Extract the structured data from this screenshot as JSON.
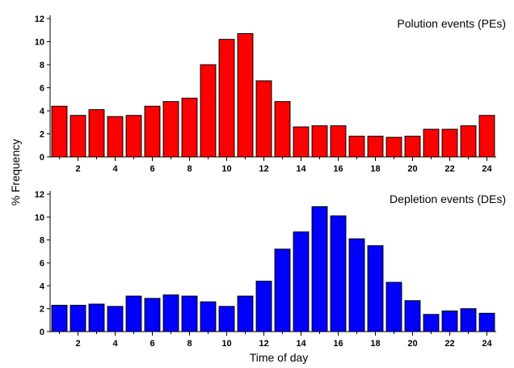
{
  "chart_data": [
    {
      "type": "bar",
      "title": "Polution events (PEs)",
      "x": [
        1,
        2,
        3,
        4,
        5,
        6,
        7,
        8,
        9,
        10,
        11,
        12,
        13,
        14,
        15,
        16,
        17,
        18,
        19,
        20,
        21,
        22,
        23,
        24
      ],
      "x_tick_labels": [
        "2",
        "4",
        "6",
        "8",
        "10",
        "12",
        "14",
        "16",
        "18",
        "20",
        "22",
        "24"
      ],
      "values": [
        4.4,
        3.6,
        4.1,
        3.5,
        3.6,
        4.4,
        4.8,
        5.1,
        8.0,
        10.2,
        10.7,
        6.6,
        4.8,
        2.6,
        2.7,
        2.7,
        1.8,
        1.8,
        1.7,
        1.8,
        2.4,
        2.4,
        2.7,
        3.6
      ],
      "ylim": [
        0,
        12
      ],
      "y_ticks": [
        0,
        2,
        4,
        6,
        8,
        10,
        12
      ],
      "color": "#ff0000",
      "grid": false
    },
    {
      "type": "bar",
      "title": "Depletion events (DEs)",
      "x": [
        1,
        2,
        3,
        4,
        5,
        6,
        7,
        8,
        9,
        10,
        11,
        12,
        13,
        14,
        15,
        16,
        17,
        18,
        19,
        20,
        21,
        22,
        23,
        24
      ],
      "x_tick_labels": [
        "2",
        "4",
        "6",
        "8",
        "10",
        "12",
        "14",
        "16",
        "18",
        "20",
        "22",
        "24"
      ],
      "values": [
        2.3,
        2.3,
        2.4,
        2.2,
        3.1,
        2.9,
        3.2,
        3.1,
        2.6,
        2.2,
        3.1,
        4.4,
        7.2,
        8.7,
        10.9,
        10.1,
        8.1,
        7.5,
        4.3,
        2.7,
        1.5,
        1.8,
        2.0,
        1.6
      ],
      "ylim": [
        0,
        12
      ],
      "y_ticks": [
        0,
        2,
        4,
        6,
        8,
        10,
        12
      ],
      "color": "#0000ff",
      "grid": false
    }
  ],
  "shared": {
    "ylabel": "% Frequency",
    "xlabel": "Time of day"
  }
}
